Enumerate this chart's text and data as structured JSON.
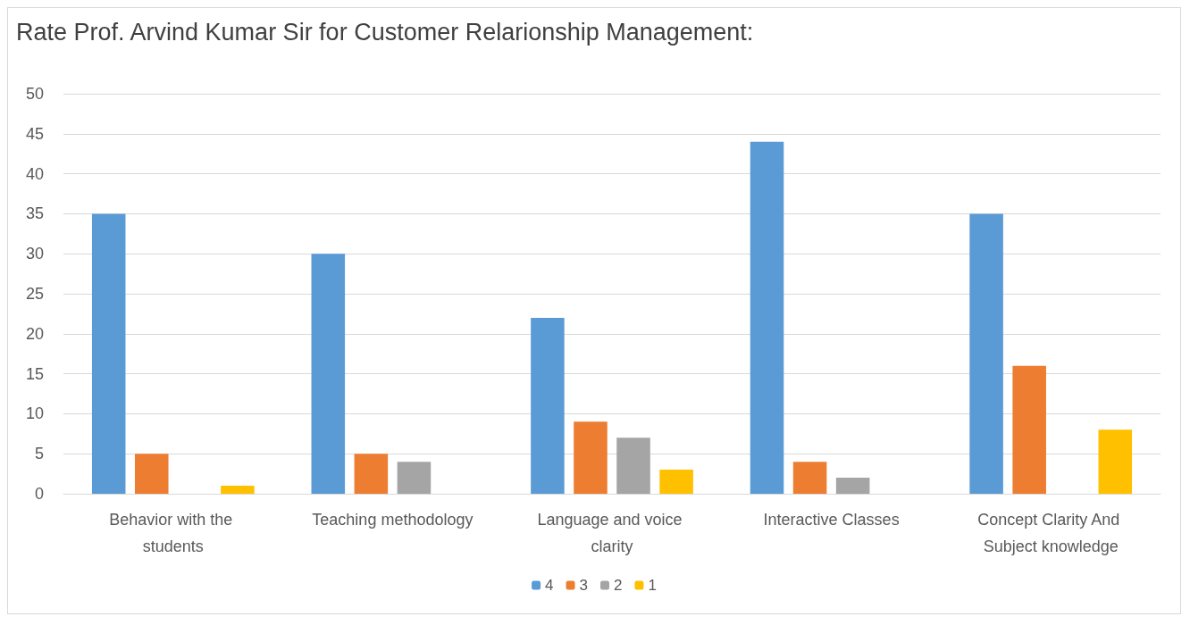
{
  "chart_data": {
    "type": "bar",
    "title": "Rate Prof. Arvind Kumar Sir for Customer Relarionship Management:",
    "categories": [
      "Behavior with the students",
      "Teaching methodology",
      "Language and voice clarity",
      "Interactive Classes",
      "Concept Clarity And Subject knowledge"
    ],
    "series": [
      {
        "name": "4",
        "color": "#5b9bd5",
        "values": [
          35,
          30,
          22,
          44,
          35
        ]
      },
      {
        "name": "3",
        "color": "#ed7d31",
        "values": [
          5,
          5,
          9,
          4,
          16
        ]
      },
      {
        "name": "2",
        "color": "#a5a5a5",
        "values": [
          null,
          4,
          7,
          2,
          null
        ]
      },
      {
        "name": "1",
        "color": "#ffc000",
        "values": [
          1,
          null,
          3,
          null,
          8
        ]
      }
    ],
    "ylim": [
      0,
      50
    ],
    "yticks": [
      0,
      5,
      10,
      15,
      20,
      25,
      30,
      35,
      40,
      45,
      50
    ],
    "grid": "y",
    "legend": "bottom"
  }
}
